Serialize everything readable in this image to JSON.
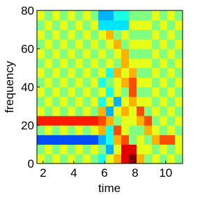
{
  "chart_data": {
    "type": "heatmap",
    "x_label": "time",
    "y_label": "frequency",
    "xlim": [
      1.6,
      11.1
    ],
    "ylim": [
      0,
      80
    ],
    "xticks": [
      2,
      4,
      6,
      8,
      10
    ],
    "yticks": [
      0,
      20,
      40,
      60,
      80
    ],
    "colormap": "jet",
    "z": [
      [
        0.6,
        0.5,
        0.6,
        0.5,
        0.6,
        0.5,
        0.6,
        0.5,
        0.4,
        0.6,
        0.7,
        0.9,
        1.0,
        0.7,
        0.5,
        0.6,
        0.5,
        0.6,
        0.5
      ],
      [
        0.5,
        0.6,
        0.5,
        0.6,
        0.5,
        0.6,
        0.5,
        0.6,
        0.5,
        0.3,
        0.6,
        0.9,
        0.9,
        0.6,
        0.6,
        0.5,
        0.6,
        0.5,
        0.6
      ],
      [
        0.2,
        0.2,
        0.2,
        0.2,
        0.2,
        0.2,
        0.2,
        0.2,
        0.3,
        0.4,
        0.7,
        0.8,
        0.5,
        0.6,
        0.5,
        0.7,
        0.8,
        0.8,
        0.6
      ],
      [
        0.5,
        0.6,
        0.5,
        0.6,
        0.5,
        0.6,
        0.5,
        0.6,
        0.7,
        0.4,
        0.8,
        0.6,
        0.5,
        0.5,
        0.7,
        0.6,
        0.5,
        0.6,
        0.5
      ],
      [
        0.85,
        0.85,
        0.85,
        0.85,
        0.85,
        0.85,
        0.85,
        0.85,
        0.8,
        0.7,
        0.5,
        0.6,
        0.6,
        0.7,
        0.8,
        0.5,
        0.6,
        0.5,
        0.6
      ],
      [
        0.6,
        0.5,
        0.6,
        0.5,
        0.6,
        0.5,
        0.6,
        0.5,
        0.7,
        0.3,
        0.6,
        0.7,
        0.6,
        0.8,
        0.5,
        0.6,
        0.5,
        0.6,
        0.5
      ],
      [
        0.5,
        0.6,
        0.5,
        0.6,
        0.5,
        0.6,
        0.5,
        0.6,
        0.4,
        0.6,
        0.3,
        0.6,
        0.7,
        0.6,
        0.6,
        0.5,
        0.6,
        0.5,
        0.6
      ],
      [
        0.6,
        0.5,
        0.6,
        0.5,
        0.6,
        0.5,
        0.6,
        0.5,
        0.6,
        0.4,
        0.6,
        0.5,
        0.8,
        0.5,
        0.5,
        0.6,
        0.5,
        0.6,
        0.5
      ],
      [
        0.5,
        0.6,
        0.5,
        0.6,
        0.5,
        0.6,
        0.5,
        0.6,
        0.4,
        0.5,
        0.6,
        0.7,
        0.8,
        0.6,
        0.6,
        0.5,
        0.6,
        0.5,
        0.6
      ],
      [
        0.6,
        0.5,
        0.6,
        0.5,
        0.6,
        0.5,
        0.6,
        0.5,
        0.6,
        0.4,
        0.7,
        0.6,
        0.7,
        0.5,
        0.5,
        0.6,
        0.5,
        0.6,
        0.5
      ],
      [
        0.5,
        0.6,
        0.5,
        0.6,
        0.5,
        0.6,
        0.5,
        0.6,
        0.5,
        0.6,
        0.5,
        0.7,
        0.6,
        0.6,
        0.6,
        0.5,
        0.6,
        0.5,
        0.6
      ],
      [
        0.6,
        0.5,
        0.6,
        0.5,
        0.6,
        0.5,
        0.6,
        0.5,
        0.6,
        0.5,
        0.6,
        0.7,
        0.5,
        0.5,
        0.5,
        0.6,
        0.5,
        0.6,
        0.5
      ],
      [
        0.5,
        0.6,
        0.5,
        0.6,
        0.5,
        0.6,
        0.5,
        0.6,
        0.5,
        0.6,
        0.7,
        0.5,
        0.6,
        0.6,
        0.6,
        0.5,
        0.6,
        0.5,
        0.6
      ],
      [
        0.6,
        0.5,
        0.6,
        0.5,
        0.6,
        0.5,
        0.6,
        0.5,
        0.6,
        0.7,
        0.5,
        0.6,
        0.5,
        0.5,
        0.5,
        0.6,
        0.5,
        0.6,
        0.5
      ],
      [
        0.5,
        0.6,
        0.5,
        0.6,
        0.5,
        0.6,
        0.5,
        0.6,
        0.35,
        0.35,
        0.35,
        0.35,
        0.6,
        0.6,
        0.6,
        0.5,
        0.6,
        0.5,
        0.6
      ],
      [
        0.6,
        0.5,
        0.6,
        0.5,
        0.6,
        0.5,
        0.6,
        0.5,
        0.3,
        0.3,
        0.4,
        0.4,
        0.5,
        0.5,
        0.5,
        0.6,
        0.5,
        0.6,
        0.5
      ]
    ]
  }
}
